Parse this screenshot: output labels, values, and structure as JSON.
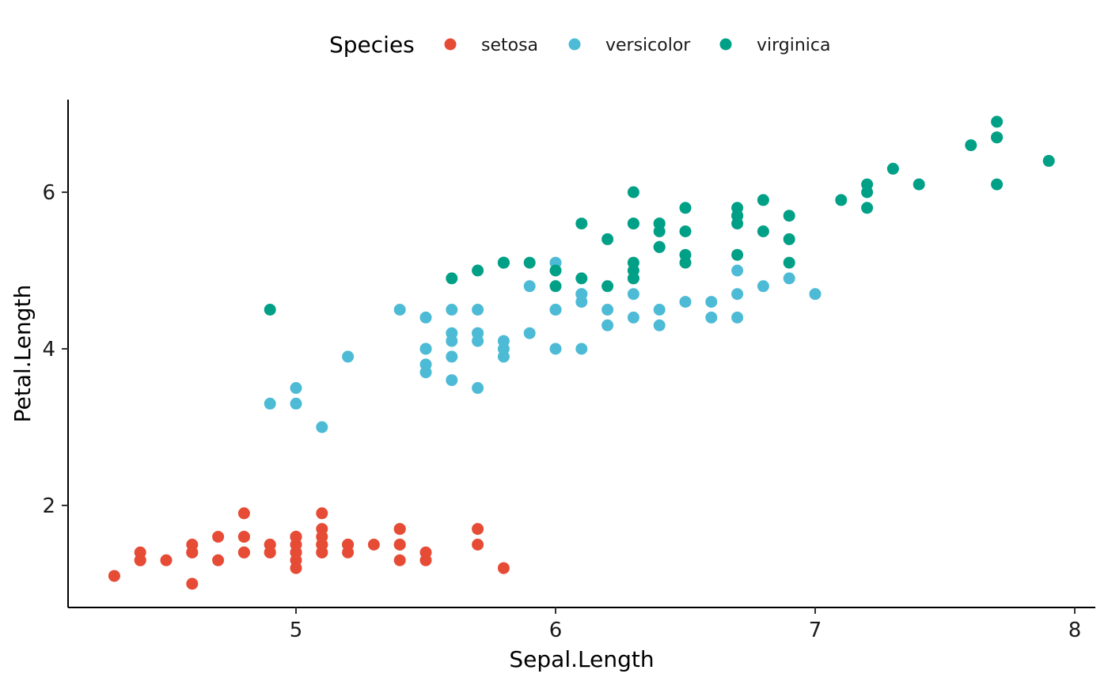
{
  "chart_data": {
    "type": "scatter",
    "xlabel": "Sepal.Length",
    "ylabel": "Petal.Length",
    "xlim": [
      4.2,
      8.1
    ],
    "ylim": [
      0.7,
      7.2
    ],
    "xticks": [
      5,
      6,
      7,
      8
    ],
    "yticks": [
      2,
      4,
      6
    ],
    "grid": false,
    "legend": {
      "title": "Species",
      "position": "top"
    },
    "series": [
      {
        "name": "setosa",
        "color": "#E64B35",
        "points": [
          [
            5.1,
            1.4
          ],
          [
            4.9,
            1.4
          ],
          [
            4.7,
            1.3
          ],
          [
            4.6,
            1.5
          ],
          [
            5.0,
            1.4
          ],
          [
            5.4,
            1.7
          ],
          [
            4.6,
            1.4
          ],
          [
            5.0,
            1.5
          ],
          [
            4.4,
            1.4
          ],
          [
            4.9,
            1.5
          ],
          [
            5.4,
            1.5
          ],
          [
            4.8,
            1.6
          ],
          [
            4.8,
            1.4
          ],
          [
            4.3,
            1.1
          ],
          [
            5.8,
            1.2
          ],
          [
            5.7,
            1.5
          ],
          [
            5.4,
            1.3
          ],
          [
            5.1,
            1.4
          ],
          [
            5.7,
            1.7
          ],
          [
            5.1,
            1.5
          ],
          [
            5.4,
            1.7
          ],
          [
            5.1,
            1.5
          ],
          [
            4.6,
            1.0
          ],
          [
            5.1,
            1.7
          ],
          [
            4.8,
            1.9
          ],
          [
            5.0,
            1.6
          ],
          [
            5.0,
            1.6
          ],
          [
            5.2,
            1.5
          ],
          [
            5.2,
            1.4
          ],
          [
            4.7,
            1.6
          ],
          [
            4.8,
            1.6
          ],
          [
            5.4,
            1.5
          ],
          [
            5.2,
            1.5
          ],
          [
            5.5,
            1.4
          ],
          [
            4.9,
            1.5
          ],
          [
            5.0,
            1.2
          ],
          [
            5.5,
            1.3
          ],
          [
            4.9,
            1.4
          ],
          [
            4.4,
            1.3
          ],
          [
            5.1,
            1.5
          ],
          [
            5.0,
            1.3
          ],
          [
            4.5,
            1.3
          ],
          [
            4.4,
            1.3
          ],
          [
            5.0,
            1.6
          ],
          [
            5.1,
            1.9
          ],
          [
            4.8,
            1.4
          ],
          [
            5.1,
            1.6
          ],
          [
            4.6,
            1.4
          ],
          [
            5.3,
            1.5
          ],
          [
            5.0,
            1.4
          ]
        ]
      },
      {
        "name": "versicolor",
        "color": "#4DBBD5",
        "points": [
          [
            7.0,
            4.7
          ],
          [
            6.4,
            4.5
          ],
          [
            6.9,
            4.9
          ],
          [
            5.5,
            4.0
          ],
          [
            6.5,
            4.6
          ],
          [
            5.7,
            4.5
          ],
          [
            6.3,
            4.7
          ],
          [
            4.9,
            3.3
          ],
          [
            6.6,
            4.6
          ],
          [
            5.2,
            3.9
          ],
          [
            5.0,
            3.5
          ],
          [
            5.9,
            4.2
          ],
          [
            6.0,
            4.0
          ],
          [
            6.1,
            4.7
          ],
          [
            5.6,
            3.6
          ],
          [
            6.7,
            4.4
          ],
          [
            5.6,
            4.5
          ],
          [
            5.8,
            4.1
          ],
          [
            6.2,
            4.5
          ],
          [
            5.6,
            3.9
          ],
          [
            5.9,
            4.8
          ],
          [
            6.1,
            4.0
          ],
          [
            6.3,
            4.9
          ],
          [
            6.1,
            4.7
          ],
          [
            6.4,
            4.3
          ],
          [
            6.6,
            4.4
          ],
          [
            6.8,
            4.8
          ],
          [
            6.7,
            5.0
          ],
          [
            6.0,
            4.5
          ],
          [
            5.7,
            3.5
          ],
          [
            5.5,
            3.8
          ],
          [
            5.5,
            3.7
          ],
          [
            5.8,
            3.9
          ],
          [
            6.0,
            5.1
          ],
          [
            5.4,
            4.5
          ],
          [
            6.0,
            4.5
          ],
          [
            6.7,
            4.7
          ],
          [
            6.3,
            4.4
          ],
          [
            5.6,
            4.1
          ],
          [
            5.5,
            4.0
          ],
          [
            5.5,
            4.4
          ],
          [
            6.1,
            4.6
          ],
          [
            5.8,
            4.0
          ],
          [
            5.0,
            3.3
          ],
          [
            5.6,
            4.2
          ],
          [
            5.7,
            4.2
          ],
          [
            5.7,
            4.2
          ],
          [
            6.2,
            4.3
          ],
          [
            5.1,
            3.0
          ],
          [
            5.7,
            4.1
          ]
        ]
      },
      {
        "name": "virginica",
        "color": "#00A087",
        "points": [
          [
            6.3,
            6.0
          ],
          [
            5.8,
            5.1
          ],
          [
            7.1,
            5.9
          ],
          [
            6.3,
            5.6
          ],
          [
            6.5,
            5.8
          ],
          [
            7.6,
            6.6
          ],
          [
            4.9,
            4.5
          ],
          [
            7.3,
            6.3
          ],
          [
            6.7,
            5.8
          ],
          [
            7.2,
            6.1
          ],
          [
            6.5,
            5.1
          ],
          [
            6.4,
            5.3
          ],
          [
            6.8,
            5.5
          ],
          [
            5.7,
            5.0
          ],
          [
            5.8,
            5.1
          ],
          [
            6.4,
            5.3
          ],
          [
            6.5,
            5.5
          ],
          [
            7.7,
            6.7
          ],
          [
            7.7,
            6.9
          ],
          [
            6.0,
            5.0
          ],
          [
            6.9,
            5.7
          ],
          [
            5.6,
            4.9
          ],
          [
            7.7,
            6.7
          ],
          [
            6.3,
            4.9
          ],
          [
            6.7,
            5.7
          ],
          [
            7.2,
            6.0
          ],
          [
            6.2,
            4.8
          ],
          [
            6.1,
            4.9
          ],
          [
            6.4,
            5.6
          ],
          [
            7.2,
            5.8
          ],
          [
            7.4,
            6.1
          ],
          [
            7.9,
            6.4
          ],
          [
            6.4,
            5.6
          ],
          [
            6.3,
            5.1
          ],
          [
            6.1,
            5.6
          ],
          [
            7.7,
            6.1
          ],
          [
            6.3,
            5.6
          ],
          [
            6.4,
            5.5
          ],
          [
            6.0,
            4.8
          ],
          [
            6.9,
            5.4
          ],
          [
            6.7,
            5.6
          ],
          [
            6.9,
            5.1
          ],
          [
            5.8,
            5.1
          ],
          [
            6.8,
            5.9
          ],
          [
            6.7,
            5.7
          ],
          [
            6.7,
            5.2
          ],
          [
            6.3,
            5.0
          ],
          [
            6.5,
            5.2
          ],
          [
            6.2,
            5.4
          ],
          [
            5.9,
            5.1
          ]
        ]
      }
    ]
  }
}
